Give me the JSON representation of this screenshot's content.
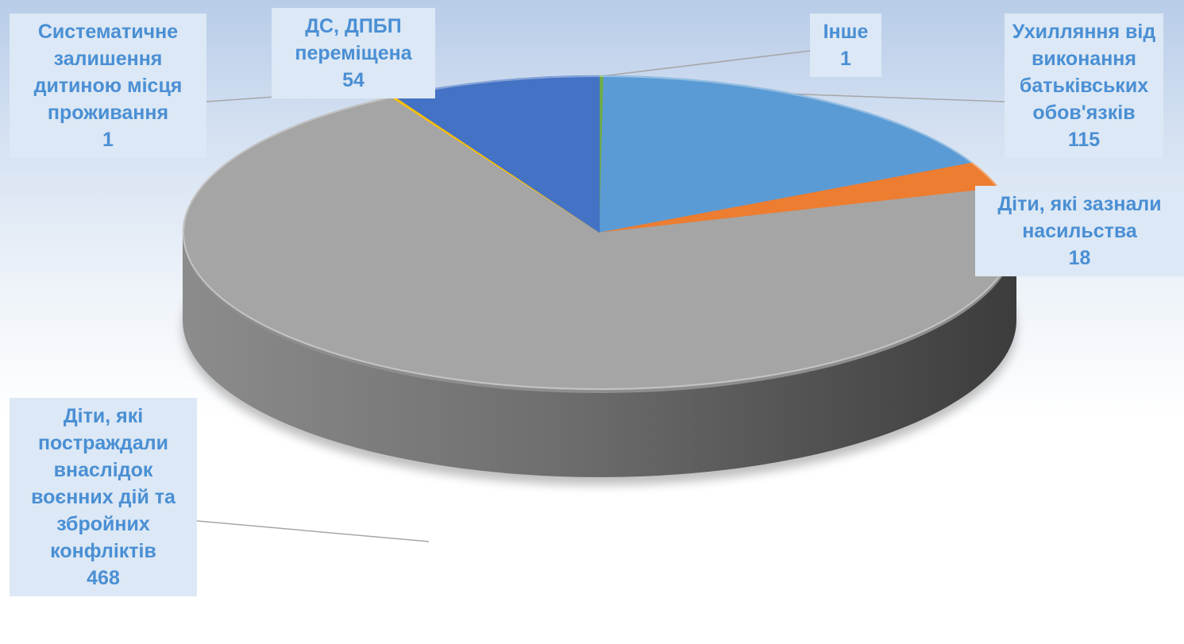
{
  "chart_data": {
    "type": "pie",
    "three_d": true,
    "legend": "none",
    "slices": [
      {
        "name": "Інше",
        "value": 1,
        "color": "#70ad47",
        "label_lines": [
          "Інше"
        ]
      },
      {
        "name": "Ухилляння від виконання батьківських обов'язків",
        "value": 115,
        "color": "#5b9bd5",
        "label_lines": [
          "Ухилляння від",
          "виконання",
          "батьківських",
          "обов'язків"
        ]
      },
      {
        "name": "Діти, які зазнали насильства",
        "value": 18,
        "color": "#ed7d31",
        "label_lines": [
          "Діти, які зазнали",
          "насильства"
        ]
      },
      {
        "name": "Діти, які постраждали внаслідок воєнних дій та збройних конфліктів",
        "value": 468,
        "color": "#a5a5a5",
        "label_lines": [
          "Діти, які",
          "постраждали",
          "внаслідок",
          "воєнних дій та",
          "збройних",
          "конфліктів"
        ]
      },
      {
        "name": "Систематичне залишення дитиною місця проживання",
        "value": 1,
        "color": "#ffc000",
        "label_lines": [
          "Систематичне",
          "залишення",
          "дитиною місця",
          "проживання"
        ]
      },
      {
        "name": "ДС, ДПБП переміщена",
        "value": 54,
        "color": "#4472c4",
        "label_lines": [
          "ДС, ДПБП",
          "переміщена"
        ]
      }
    ]
  }
}
